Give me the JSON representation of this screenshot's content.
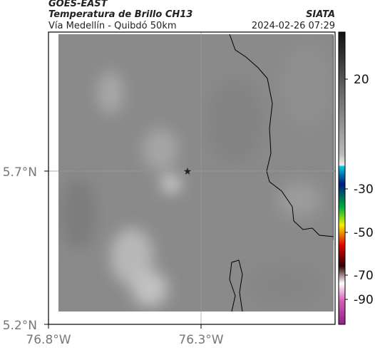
{
  "header": {
    "source": "GOES-EAST",
    "title": "Temperatura de Brillo CH13",
    "org": "SIATA",
    "region": "Vía Medellín - Quibdó 50km",
    "timestamp": "2024-02-26 07:29"
  },
  "axes": {
    "lat_labels": [
      "5.7°N",
      "5.2°N"
    ],
    "lon_labels": [
      "76.8°W",
      "76.3°W"
    ]
  },
  "colorbar": {
    "labels": [
      "20",
      "-30",
      "-50",
      "-70",
      "-90"
    ]
  }
}
